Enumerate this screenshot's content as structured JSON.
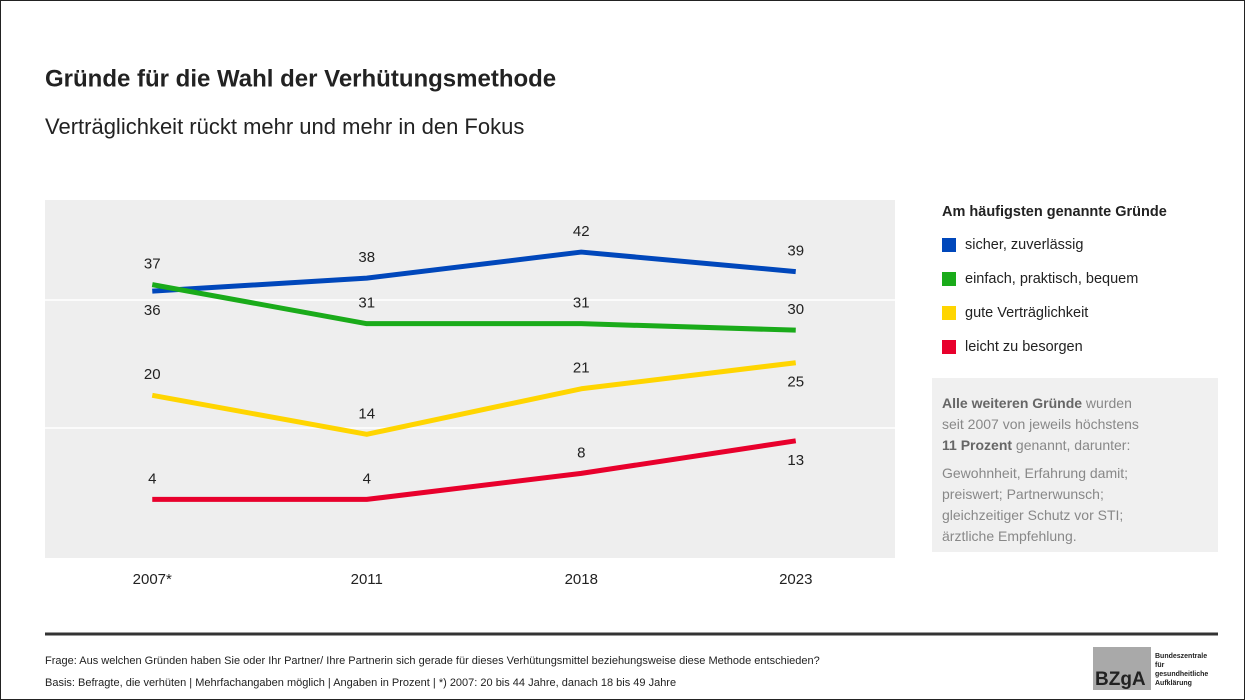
{
  "chart_data": {
    "type": "line",
    "title": "Gründe für die Wahl der Verhütungsmethode",
    "subtitle": "Verträglichkeit rückt mehr und mehr in den Fokus",
    "categories": [
      "2007*",
      "2011",
      "2018",
      "2023"
    ],
    "ylim": [
      -5,
      50
    ],
    "legend_title": "Am häufigsten genannte Gründe",
    "series": [
      {
        "name": "sicher, zuverlässig",
        "color": "#0047bb",
        "values": [
          36,
          38,
          42,
          39
        ]
      },
      {
        "name": "einfach, praktisch, bequem",
        "color": "#1aab1a",
        "values": [
          37,
          31,
          31,
          30
        ]
      },
      {
        "name": "gute Verträglichkeit",
        "color": "#ffd500",
        "values": [
          20,
          14,
          21,
          25
        ]
      },
      {
        "name": "leicht zu besorgen",
        "color": "#e8002c",
        "values": [
          4,
          4,
          8,
          13
        ]
      }
    ],
    "note": {
      "lines": [
        [
          {
            "text": "Alle weiteren Gründe",
            "bold": true
          },
          {
            "text": " wurden",
            "bold": false
          }
        ],
        [
          {
            "text": "seit 2007 von jeweils höchstens",
            "bold": false
          }
        ],
        [
          {
            "text": "11 Prozent",
            "bold": true
          },
          {
            "text": " genannt, darunter:",
            "bold": false
          }
        ],
        [
          {
            "text": "Gewohnheit, Erfahrung damit;",
            "bold": false
          }
        ],
        [
          {
            "text": "preiswert; Partnerwunsch;",
            "bold": false
          }
        ],
        [
          {
            "text": "gleichzeitiger Schutz vor STI;",
            "bold": false
          }
        ],
        [
          {
            "text": "ärztliche Empfehlung.",
            "bold": false
          }
        ]
      ]
    },
    "footnotes": [
      "Frage: Aus welchen Gründen haben Sie oder Ihr Partner/ Ihre Partnerin sich gerade für dieses Verhütungsmittel beziehungsweise diese Methode entschieden?",
      "Basis: Befragte, die verhüten | Mehrfachangaben möglich | Angaben in Prozent | *) 2007: 20 bis 44 Jahre, danach 18 bis 49 Jahre"
    ],
    "logo": {
      "mark": "BZgA",
      "lines": [
        "Bundeszentrale",
        "für",
        "gesundheitliche",
        "Aufklärung"
      ]
    }
  }
}
